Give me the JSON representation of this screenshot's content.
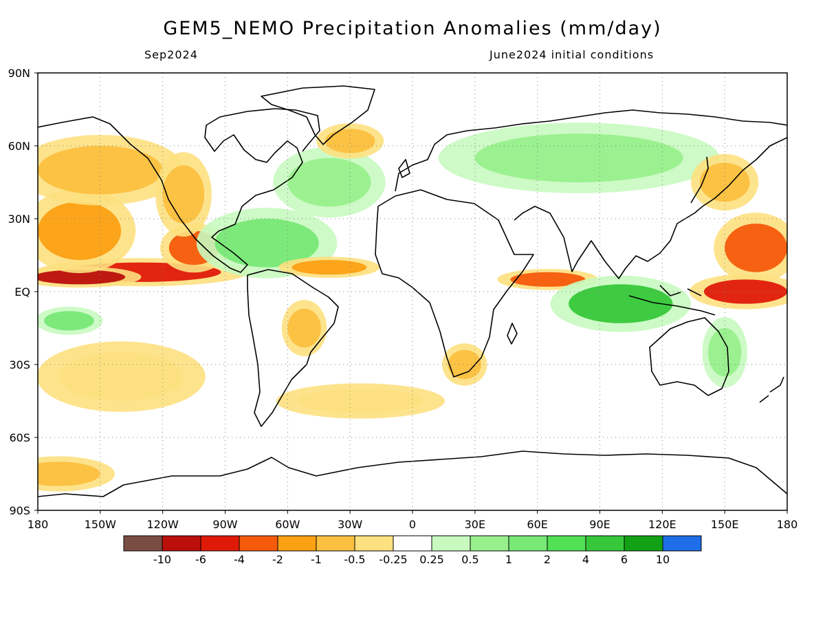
{
  "title": "GEM5_NEMO Precipitation Anomalies (mm/day)",
  "valid_period": "Sep2024",
  "initial_conditions": "June2024 initial conditions",
  "map": {
    "lat_labels": [
      "90N",
      "60N",
      "30N",
      "EQ",
      "30S",
      "60S",
      "90S"
    ],
    "lat_values": [
      90,
      60,
      30,
      0,
      -30,
      -60,
      -90
    ],
    "lon_labels": [
      "180",
      "150W",
      "120W",
      "90W",
      "60W",
      "30W",
      "0",
      "30E",
      "60E",
      "90E",
      "120E",
      "150E",
      "180"
    ],
    "lon_values": [
      -180,
      -150,
      -120,
      -90,
      -60,
      -30,
      0,
      30,
      60,
      90,
      120,
      150,
      180
    ],
    "grid": "dotted"
  },
  "colorbar": {
    "colors": [
      "#7a4d43",
      "#bb0f0b",
      "#e01a09",
      "#f55b0b",
      "#fca014",
      "#fcc040",
      "#fde07f",
      "#ffffff",
      "#c8fac0",
      "#98f08c",
      "#78e877",
      "#52e054",
      "#36c83a",
      "#12a114",
      "#1e6ee8"
    ],
    "labels": [
      "-10",
      "-6",
      "-4",
      "-2",
      "-1",
      "-0.5",
      "-0.25",
      "0.25",
      "0.5",
      "1",
      "2",
      "4",
      "6",
      "10"
    ]
  },
  "anomaly_regions": [
    {
      "name": "East Pacific ITCZ dry",
      "lon": -130,
      "lat": 8,
      "rx": 38,
      "ry": 4,
      "value": -6
    },
    {
      "name": "Central Pacific dry band",
      "lon": -160,
      "lat": 6,
      "rx": 22,
      "ry": 3,
      "value": -10
    },
    {
      "name": "Subtropical North Pacific dry",
      "lon": -160,
      "lat": 25,
      "rx": 20,
      "ry": 12,
      "value": -2
    },
    {
      "name": "North Pacific dry",
      "lon": -150,
      "lat": 50,
      "rx": 30,
      "ry": 10,
      "value": -1
    },
    {
      "name": "Mexico Pacific coast dry",
      "lon": -105,
      "lat": 18,
      "rx": 12,
      "ry": 7,
      "value": -4
    },
    {
      "name": "Western US dry",
      "lon": -110,
      "lat": 40,
      "rx": 10,
      "ry": 12,
      "value": -1
    },
    {
      "name": "Western North Pacific dry",
      "lon": 165,
      "lat": 18,
      "rx": 15,
      "ry": 10,
      "value": -4
    },
    {
      "name": "West Pacific equatorial dry",
      "lon": 160,
      "lat": 0,
      "rx": 20,
      "ry": 5,
      "value": -6
    },
    {
      "name": "Indian Ocean equatorial dry",
      "lon": 65,
      "lat": 5,
      "rx": 18,
      "ry": 3,
      "value": -4
    },
    {
      "name": "Maritime Continent wet",
      "lon": 100,
      "lat": -5,
      "rx": 25,
      "ry": 8,
      "value": 4
    },
    {
      "name": "Caribbean wet",
      "lon": -70,
      "lat": 20,
      "rx": 25,
      "ry": 10,
      "value": 1
    },
    {
      "name": "Tropical Atlantic dry",
      "lon": -40,
      "lat": 10,
      "rx": 18,
      "ry": 3,
      "value": -2
    },
    {
      "name": "Southern Brazil dry",
      "lon": -52,
      "lat": -15,
      "rx": 8,
      "ry": 8,
      "value": -1
    },
    {
      "name": "Southern Africa dry",
      "lon": 25,
      "lat": -30,
      "rx": 8,
      "ry": 6,
      "value": -1
    },
    {
      "name": "South Pacific dry",
      "lon": -140,
      "lat": -35,
      "rx": 30,
      "ry": 10,
      "value": -0.5
    },
    {
      "name": "South Atlantic dry",
      "lon": -25,
      "lat": -45,
      "rx": 30,
      "ry": 5,
      "value": -0.5
    },
    {
      "name": "South Pacific wet",
      "lon": -165,
      "lat": -12,
      "rx": 12,
      "ry": 4,
      "value": 1
    },
    {
      "name": "Antarctic coast dry",
      "lon": -170,
      "lat": -75,
      "rx": 20,
      "ry": 5,
      "value": -1
    },
    {
      "name": "Australia east wet",
      "lon": 150,
      "lat": -25,
      "rx": 8,
      "ry": 10,
      "value": 0.5
    },
    {
      "name": "Eurasia wet",
      "lon": 80,
      "lat": 55,
      "rx": 50,
      "ry": 10,
      "value": 0.5
    },
    {
      "name": "North Atlantic wet",
      "lon": -40,
      "lat": 45,
      "rx": 20,
      "ry": 10,
      "value": 0.5
    },
    {
      "name": "Greenland east dry",
      "lon": -30,
      "lat": 62,
      "rx": 12,
      "ry": 5,
      "value": -1
    },
    {
      "name": "Japan east dry",
      "lon": 150,
      "lat": 45,
      "rx": 12,
      "ry": 8,
      "value": -1
    }
  ]
}
